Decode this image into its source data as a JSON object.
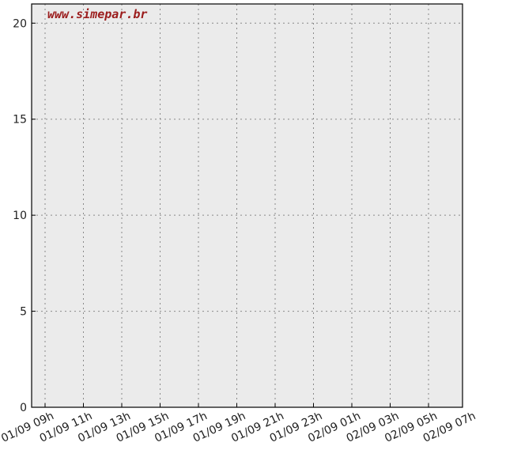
{
  "chart_data": {
    "type": "line",
    "title": "",
    "xlabel": "",
    "ylabel": "",
    "watermark": "www.simepar.br",
    "x_ticks": [
      "01/09 09h",
      "01/09 11h",
      "01/09 13h",
      "01/09 15h",
      "01/09 17h",
      "01/09 19h",
      "01/09 21h",
      "01/09 23h",
      "02/09 01h",
      "02/09 03h",
      "02/09 05h",
      "02/09 07h"
    ],
    "y_ticks": [
      0,
      5,
      10,
      15,
      20
    ],
    "ylim": [
      0,
      21
    ],
    "grid": true,
    "series": [],
    "colors": {
      "plot_bg": "#ebebeb",
      "grid": "#8a8a8a",
      "axes": "#000000",
      "watermark": "#9b1c1c"
    }
  }
}
